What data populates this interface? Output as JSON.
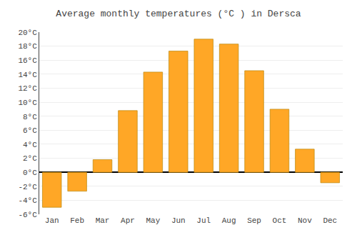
{
  "chart_data": {
    "type": "bar",
    "title": "Average monthly temperatures (°C ) in Dersca",
    "categories": [
      "Jan",
      "Feb",
      "Mar",
      "Apr",
      "May",
      "Jun",
      "Jul",
      "Aug",
      "Sep",
      "Oct",
      "Nov",
      "Dec"
    ],
    "values": [
      -5.0,
      -2.7,
      1.8,
      8.8,
      14.3,
      17.3,
      19.0,
      18.3,
      14.5,
      9.0,
      3.3,
      -1.5
    ],
    "color": "#FFA726",
    "ylim": [
      -6,
      20
    ],
    "yticks": [
      {
        "value": -6,
        "label": "-6°C"
      },
      {
        "value": -4,
        "label": "-4°C"
      },
      {
        "value": -2,
        "label": "-2°C"
      },
      {
        "value": 0,
        "label": "0°C"
      },
      {
        "value": 2,
        "label": "2°C"
      },
      {
        "value": 4,
        "label": "4°C"
      },
      {
        "value": 6,
        "label": "6°C"
      },
      {
        "value": 8,
        "label": "8°C"
      },
      {
        "value": 10,
        "label": "10°C"
      },
      {
        "value": 12,
        "label": "12°C"
      },
      {
        "value": 14,
        "label": "14°C"
      },
      {
        "value": 16,
        "label": "16°C"
      },
      {
        "value": 18,
        "label": "18°C"
      },
      {
        "value": 20,
        "label": "20°C"
      }
    ],
    "grid": true
  }
}
